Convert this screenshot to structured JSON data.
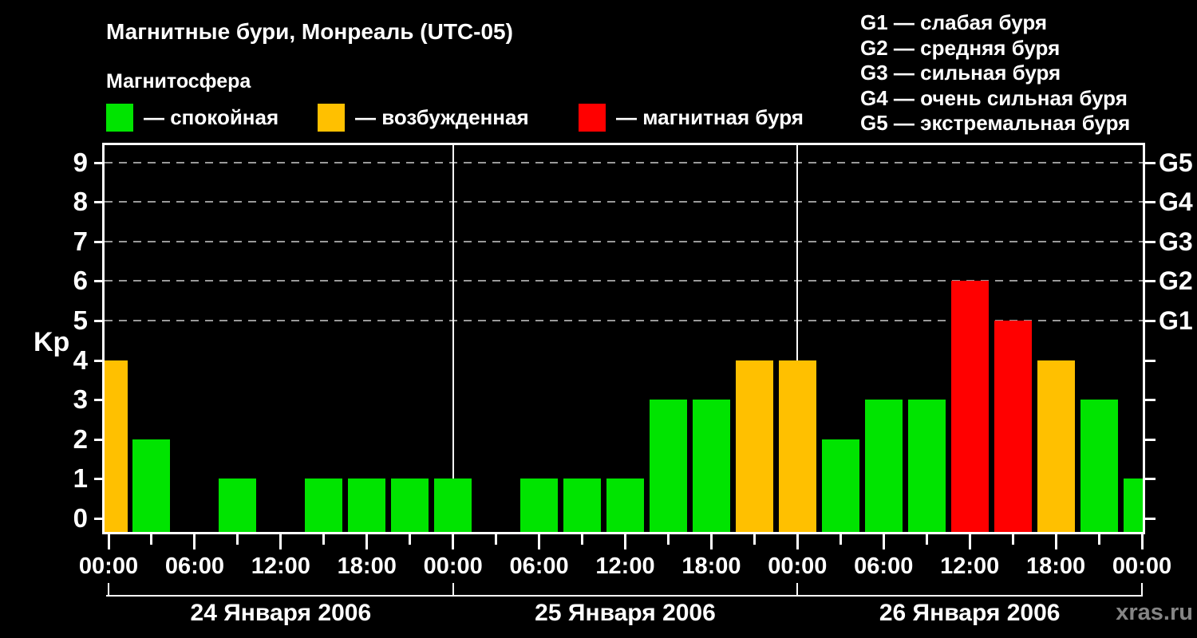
{
  "header": {
    "title": "Магнитные бури, Монреаль (UTC-05)",
    "subtitle": "Магнитосфера",
    "legend": [
      {
        "label": "— спокойная",
        "color": "#00e400",
        "state": "quiet"
      },
      {
        "label": "— возбужденная",
        "color": "#ffc000",
        "state": "active"
      },
      {
        "label": "— магнитная буря",
        "color": "#ff0000",
        "state": "storm"
      }
    ],
    "g_legend": [
      "G1 — слабая буря",
      "G2 — средняя буря",
      "G3 — сильная буря",
      "G4 — очень сильная буря",
      "G5 — экстремальная буря"
    ]
  },
  "watermark": "xras.ru",
  "chart_data": {
    "type": "bar",
    "title": "Магнитные бури, Монреаль (UTC-05)",
    "ylabel": "Kp",
    "ylim": [
      0,
      9.4
    ],
    "y_ticks": [
      0,
      1,
      2,
      3,
      4,
      5,
      6,
      7,
      8,
      9
    ],
    "grid_levels": [
      5,
      6,
      7,
      8,
      9
    ],
    "grid_color": "#9a9a9a",
    "right_axis": [
      {
        "kp": 5,
        "label": "G1"
      },
      {
        "kp": 6,
        "label": "G2"
      },
      {
        "kp": 7,
        "label": "G3"
      },
      {
        "kp": 8,
        "label": "G4"
      },
      {
        "kp": 9,
        "label": "G5"
      }
    ],
    "x_time_labels": [
      "00:00",
      "06:00",
      "12:00",
      "18:00"
    ],
    "interval_hours": 3,
    "days": [
      {
        "date": "24 Января 2006",
        "kp": [
          4,
          2,
          0,
          1,
          0,
          1,
          1,
          1
        ]
      },
      {
        "date": "25 Января 2006",
        "kp": [
          1,
          0,
          1,
          1,
          1,
          3,
          3,
          4
        ]
      },
      {
        "date": "26 Января 2006",
        "kp": [
          4,
          2,
          3,
          3,
          6,
          5,
          4,
          3
        ]
      }
    ],
    "next_day_first_kp": 1,
    "colors": {
      "quiet": "#00e400",
      "active": "#ffc000",
      "storm": "#ff0000"
    },
    "color_rule": "kp<=3 quiet, kp=4 active, kp>=5 storm"
  }
}
